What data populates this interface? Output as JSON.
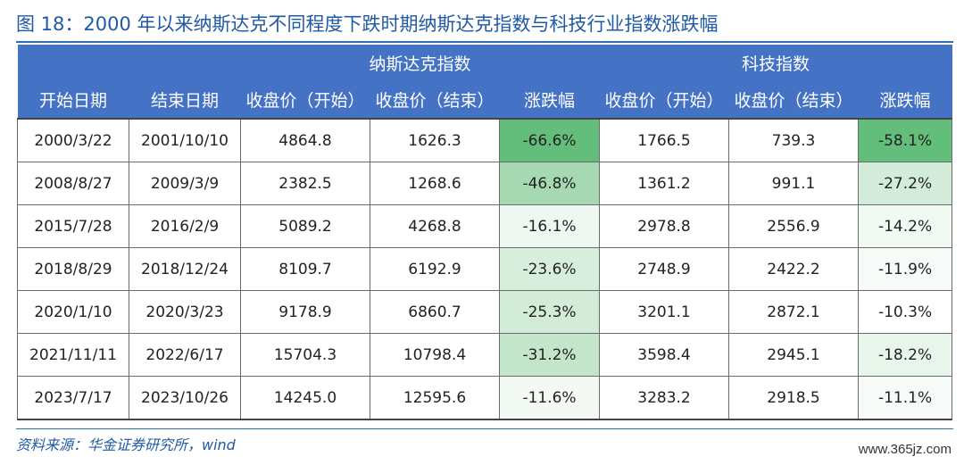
{
  "title": "图 18：2000 年以来纳斯达克不同程度下跌时期纳斯达克指数与科技行业指数涨跌幅",
  "groups": {
    "nasdaq": "纳斯达克指数",
    "tech": "科技指数"
  },
  "columns": [
    "开始日期",
    "结束日期",
    "收盘价（开始）",
    "收盘价（结束）",
    "涨跌幅",
    "收盘价（开始）",
    "收盘价（结束）",
    "涨跌幅"
  ],
  "rows": [
    [
      "2000/3/22",
      "2001/10/10",
      "4864.8",
      "1626.3",
      "-66.6%",
      "1766.5",
      "739.3",
      "-58.1%"
    ],
    [
      "2008/8/27",
      "2009/3/9",
      "2382.5",
      "1268.6",
      "-46.8%",
      "1361.2",
      "991.1",
      "-27.2%"
    ],
    [
      "2015/7/28",
      "2016/2/9",
      "5089.2",
      "4268.8",
      "-16.1%",
      "2978.8",
      "2556.9",
      "-14.2%"
    ],
    [
      "2018/8/29",
      "2018/12/24",
      "8109.7",
      "6192.9",
      "-23.6%",
      "2748.9",
      "2422.2",
      "-11.9%"
    ],
    [
      "2020/1/10",
      "2020/3/23",
      "9178.9",
      "6860.7",
      "-25.3%",
      "3201.1",
      "2872.1",
      "-10.3%"
    ],
    [
      "2021/11/11",
      "2022/6/17",
      "15704.3",
      "10798.4",
      "-31.2%",
      "3598.4",
      "2945.1",
      "-18.2%"
    ],
    [
      "2023/7/17",
      "2023/10/26",
      "14245.0",
      "12595.6",
      "-11.6%",
      "3283.2",
      "2918.5",
      "-11.1%"
    ]
  ],
  "heat_colors": {
    "nasdaq_change": [
      "#63be7b",
      "#a6d9b2",
      "#eef8f0",
      "#d8eedd",
      "#d2ecd8",
      "#c3e5ca",
      "#f3faf4"
    ],
    "tech_change": [
      "#63be7b",
      "#d3ecd9",
      "#f1f9f3",
      "#f7fbf8",
      "#ffffff",
      "#e8f5eb",
      "#f6fbf7"
    ]
  },
  "source": "资料来源：华金证券研究所，wind",
  "watermark": "www.365jz.com"
}
